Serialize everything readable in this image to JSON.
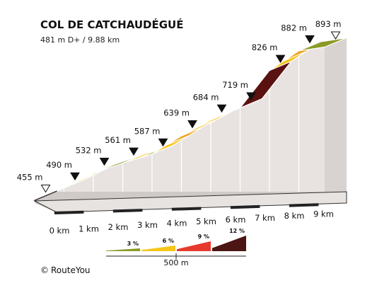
{
  "chart_data": {
    "type": "area",
    "title": "COL DE CATCHAUDÉGUÉ",
    "subtitle": "481 m D+ / 9.88 km",
    "distance_unit": "km",
    "elevation_unit": "m",
    "km_ticks": [
      "0 km",
      "1 km",
      "2 km",
      "3 km",
      "4 km",
      "5 km",
      "6 km",
      "7 km",
      "8 km",
      "9 km"
    ],
    "elevation_labels": [
      "455 m",
      "490 m",
      "532 m",
      "561 m",
      "587 m",
      "639 m",
      "684 m",
      "719 m",
      "826 m",
      "882 m",
      "893 m"
    ],
    "points": [
      {
        "km": 0,
        "elev": 455
      },
      {
        "km": 1,
        "elev": 490
      },
      {
        "km": 2,
        "elev": 532
      },
      {
        "km": 3,
        "elev": 561
      },
      {
        "km": 4,
        "elev": 587
      },
      {
        "km": 5,
        "elev": 639
      },
      {
        "km": 6,
        "elev": 684
      },
      {
        "km": 7,
        "elev": 719
      },
      {
        "km": 8,
        "elev": 826
      },
      {
        "km": 9,
        "elev": 882
      },
      {
        "km": 9.88,
        "elev": 893
      }
    ],
    "start_marker": "455 m",
    "end_marker": "893 m",
    "gradient_legend": [
      {
        "label": "3 %",
        "color": "#8a9a25"
      },
      {
        "label": "6 %",
        "color": "#f5c518"
      },
      {
        "label": "9 %",
        "color": "#e53a2d"
      },
      {
        "label": "12 %",
        "color": "#4a1512"
      }
    ],
    "scale_bar": "500 m",
    "segment_colors": {
      "green": "#8a9a25",
      "yellow": "#f5c518",
      "orange": "#eea21e",
      "maroon": "#5a1210",
      "side": "#e8e3e1",
      "edge": "#d8d2d0"
    }
  },
  "footer": {
    "copyright_symbol": "©",
    "brand": "RouteYou"
  }
}
